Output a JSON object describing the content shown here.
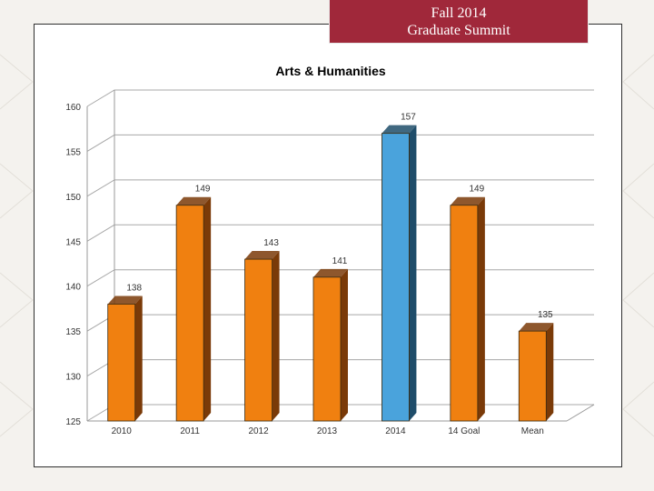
{
  "header": {
    "line1": "Fall 2014",
    "line2": "Graduate Summit",
    "background_color": "#a0283a"
  },
  "chart_data": {
    "type": "bar",
    "title": "Arts & Humanities",
    "categories": [
      "2010",
      "2011",
      "2012",
      "2013",
      "2014",
      "14 Goal",
      "Mean"
    ],
    "values": [
      138,
      149,
      143,
      141,
      157,
      149,
      135
    ],
    "data_labels": [
      "138",
      "149",
      "143",
      "141",
      "157",
      "149",
      "135"
    ],
    "bar_colors": [
      "#f08010",
      "#f08010",
      "#f08010",
      "#f08010",
      "#4aa3dc",
      "#f08010",
      "#f08010"
    ],
    "bar_side_colors": [
      "#7a3a08",
      "#7a3a08",
      "#7a3a08",
      "#7a3a08",
      "#1f4d6a",
      "#7a3a08",
      "#7a3a08"
    ],
    "y_ticks": [
      "125",
      "130",
      "135",
      "140",
      "145",
      "150",
      "155",
      "160"
    ],
    "ylim": [
      125,
      160
    ],
    "xlabel": "",
    "ylabel": "",
    "grid": true,
    "style": "3d-column"
  }
}
